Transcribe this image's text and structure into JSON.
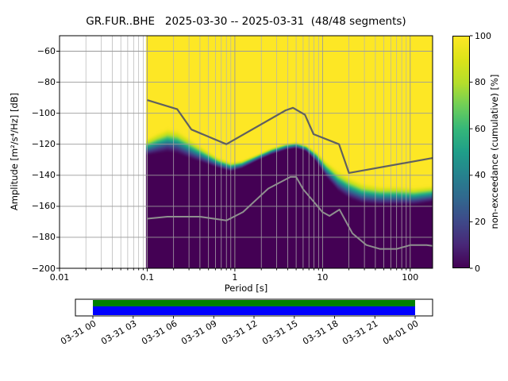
{
  "chart_data": {
    "type": "heatmap",
    "title": "GR.FUR..BHE   2025-03-30 -- 2025-03-31  (48/48 segments)",
    "station": "GR.FUR..BHE",
    "date_range": "2025-03-30 -- 2025-03-31",
    "segments": "48/48 segments",
    "xlabel": "Period [s]",
    "ylabel": "Amplitude [m²/s⁴/Hz] [dB]",
    "x_scale": "log",
    "xlim": [
      0.01,
      180
    ],
    "ylim": [
      -200,
      -50
    ],
    "x_tick_values": [
      0.01,
      0.1,
      1,
      10,
      100
    ],
    "x_tick_labels": [
      "0.01",
      "0.1",
      "1",
      "10",
      "100"
    ],
    "y_tick_values": [
      -60,
      -80,
      -100,
      -120,
      -140,
      -160,
      -180,
      -200
    ],
    "y_tick_labels": [
      "−60",
      "−80",
      "−100",
      "−120",
      "−140",
      "−160",
      "−180",
      "−200"
    ],
    "grid": true,
    "colorbar": {
      "label": "non-exceedance (cumulative) [%]",
      "tick_values": [
        0,
        20,
        40,
        60,
        80,
        100
      ],
      "tick_labels": [
        "0",
        "20",
        "40",
        "60",
        "80",
        "100"
      ],
      "colormap": "viridis",
      "color_min": "#440154",
      "color_max": "#fde725"
    },
    "cumulative_distribution": {
      "period_range_s": [
        0.0975,
        180
      ],
      "columns": [
        {
          "period": 0.098,
          "db_at_0pct": -128,
          "db_at_100pct": -116
        },
        {
          "period": 0.13,
          "db_at_0pct": -127,
          "db_at_100pct": -112
        },
        {
          "period": 0.17,
          "db_at_0pct": -126,
          "db_at_100pct": -109
        },
        {
          "period": 0.22,
          "db_at_0pct": -127,
          "db_at_100pct": -110
        },
        {
          "period": 0.3,
          "db_at_0pct": -130,
          "db_at_100pct": -115
        },
        {
          "period": 0.45,
          "db_at_0pct": -133,
          "db_at_100pct": -122
        },
        {
          "period": 0.65,
          "db_at_0pct": -136,
          "db_at_100pct": -128
        },
        {
          "period": 0.9,
          "db_at_0pct": -138,
          "db_at_100pct": -131
        },
        {
          "period": 1.2,
          "db_at_0pct": -136,
          "db_at_100pct": -130
        },
        {
          "period": 1.8,
          "db_at_0pct": -131,
          "db_at_100pct": -126
        },
        {
          "period": 2.6,
          "db_at_0pct": -127,
          "db_at_100pct": -122
        },
        {
          "period": 3.8,
          "db_at_0pct": -124,
          "db_at_100pct": -119
        },
        {
          "period": 5.0,
          "db_at_0pct": -123,
          "db_at_100pct": -118
        },
        {
          "period": 6.5,
          "db_at_0pct": -125,
          "db_at_100pct": -120
        },
        {
          "period": 8.5,
          "db_at_0pct": -132,
          "db_at_100pct": -124
        },
        {
          "period": 11,
          "db_at_0pct": -142,
          "db_at_100pct": -130
        },
        {
          "period": 15,
          "db_at_0pct": -151,
          "db_at_100pct": -136
        },
        {
          "period": 20,
          "db_at_0pct": -156,
          "db_at_100pct": -140
        },
        {
          "period": 28,
          "db_at_0pct": -159,
          "db_at_100pct": -144
        },
        {
          "period": 45,
          "db_at_0pct": -160,
          "db_at_100pct": -146
        },
        {
          "period": 70,
          "db_at_0pct": -160,
          "db_at_100pct": -146
        },
        {
          "period": 110,
          "db_at_0pct": -160,
          "db_at_100pct": -147
        },
        {
          "period": 180,
          "db_at_0pct": -158,
          "db_at_100pct": -146
        }
      ]
    },
    "noise_models": {
      "nhnm": {
        "color": "#606060",
        "points": [
          [
            0.1,
            -91.5
          ],
          [
            0.22,
            -97.4
          ],
          [
            0.32,
            -110.5
          ],
          [
            0.8,
            -120.0
          ],
          [
            3.8,
            -98.1
          ],
          [
            4.6,
            -96.5
          ],
          [
            6.3,
            -101.0
          ],
          [
            7.9,
            -113.5
          ],
          [
            15.4,
            -120.0
          ],
          [
            20.0,
            -138.5
          ],
          [
            180,
            -128.9
          ]
        ]
      },
      "nlnm": {
        "color": "#8f8f8f",
        "points": [
          [
            0.1,
            -168.0
          ],
          [
            0.17,
            -166.7
          ],
          [
            0.4,
            -166.7
          ],
          [
            0.8,
            -169.2
          ],
          [
            1.24,
            -163.7
          ],
          [
            2.4,
            -148.6
          ],
          [
            4.3,
            -141.1
          ],
          [
            5.0,
            -141.1
          ],
          [
            6.0,
            -149.0
          ],
          [
            10.0,
            -163.8
          ],
          [
            12.0,
            -166.2
          ],
          [
            15.6,
            -162.1
          ],
          [
            21.9,
            -177.5
          ],
          [
            31.6,
            -185.0
          ],
          [
            45.0,
            -187.5
          ],
          [
            70.0,
            -187.5
          ],
          [
            101.0,
            -185.0
          ],
          [
            154.0,
            -185.0
          ],
          [
            180,
            -185.5
          ]
        ]
      }
    },
    "timeline": {
      "tick_labels": [
        "03-31 00",
        "03-31 03",
        "03-31 06",
        "03-31 09",
        "03-31 12",
        "03-31 15",
        "03-31 18",
        "03-31 21",
        "04-01 00"
      ],
      "coverage_color_top": "#008000",
      "coverage_color_bottom": "#0000ff"
    }
  }
}
